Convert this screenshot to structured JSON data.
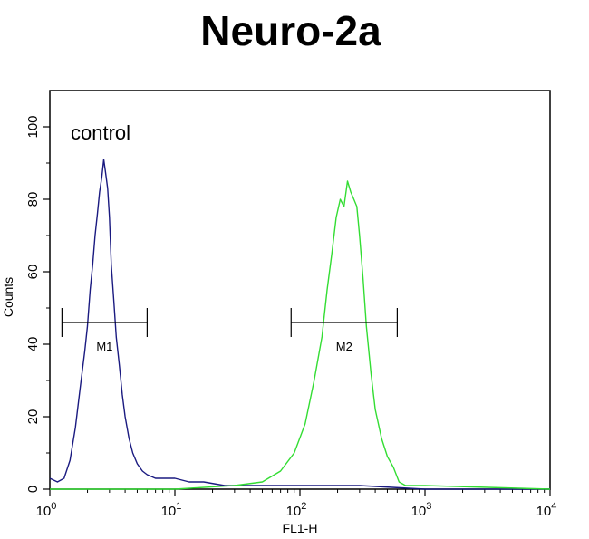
{
  "chart_data": {
    "type": "line",
    "title": "Neuro-2a",
    "xlabel": "FL1-H",
    "ylabel": "Counts",
    "x_scale": "log",
    "xlim": [
      1,
      10000
    ],
    "ylim": [
      0,
      110
    ],
    "x_ticks": [
      {
        "base": "10",
        "exp": "0"
      },
      {
        "base": "10",
        "exp": "1"
      },
      {
        "base": "10",
        "exp": "2"
      },
      {
        "base": "10",
        "exp": "3"
      },
      {
        "base": "10",
        "exp": "4"
      }
    ],
    "y_ticks": [
      "0",
      "20",
      "40",
      "60",
      "80",
      "100"
    ],
    "y_tick_values": [
      0,
      20,
      40,
      60,
      80,
      100
    ],
    "grid": false,
    "annotation": "control",
    "colors": {
      "control": "#1a1a80",
      "sample": "#33dd33",
      "markers": "#000000"
    },
    "series": [
      {
        "color": "#1a1a80",
        "x": [
          1.0,
          1.15,
          1.3,
          1.45,
          1.6,
          1.75,
          1.9,
          2.0,
          2.1,
          2.2,
          2.3,
          2.4,
          2.5,
          2.6,
          2.7,
          2.8,
          2.9,
          3.0,
          3.1,
          3.25,
          3.4,
          3.6,
          3.8,
          4.0,
          4.3,
          4.6,
          5.0,
          5.5,
          6.0,
          7.0,
          8.0,
          10.0,
          13.0,
          17.0,
          25.0,
          40.0,
          60.0,
          100.0,
          300.0,
          1000.0,
          10000.0
        ],
        "y": [
          3,
          2,
          3,
          8,
          17,
          28,
          38,
          45,
          55,
          62,
          70,
          76,
          82,
          86,
          91,
          87,
          83,
          75,
          62,
          52,
          42,
          34,
          26,
          20,
          14,
          10,
          7,
          5,
          4,
          3,
          3,
          3,
          2,
          2,
          1,
          1,
          1,
          1,
          1,
          0,
          0
        ]
      },
      {
        "color": "#33dd33",
        "x": [
          1.0,
          10.0,
          30.0,
          50.0,
          70.0,
          90.0,
          110.0,
          130.0,
          150.0,
          165.0,
          180.0,
          195.0,
          210.0,
          225.0,
          240.0,
          255.0,
          270.0,
          285.0,
          300.0,
          320.0,
          340.0,
          370.0,
          400.0,
          450.0,
          500.0,
          560.0,
          620.0,
          700.0,
          1000.0,
          10000.0
        ],
        "y": [
          0,
          0,
          1,
          2,
          5,
          10,
          18,
          30,
          42,
          55,
          65,
          75,
          80,
          78,
          85,
          82,
          80,
          78,
          70,
          58,
          45,
          32,
          22,
          14,
          9,
          6,
          2,
          1,
          1,
          0
        ]
      }
    ],
    "markers": [
      {
        "label": "M1",
        "x_start": 1.25,
        "x_end": 6.0,
        "y": 46
      },
      {
        "label": "M2",
        "x_start": 85.0,
        "x_end": 600.0,
        "y": 46
      }
    ]
  }
}
